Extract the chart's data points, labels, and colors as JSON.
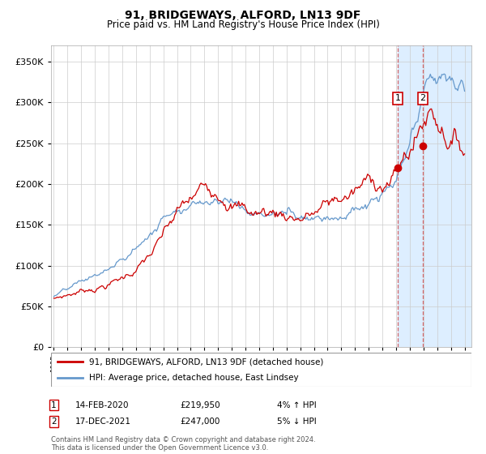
{
  "title": "91, BRIDGEWAYS, ALFORD, LN13 9DF",
  "subtitle": "Price paid vs. HM Land Registry's House Price Index (HPI)",
  "legend_line1": "91, BRIDGEWAYS, ALFORD, LN13 9DF (detached house)",
  "legend_line2": "HPI: Average price, detached house, East Lindsey",
  "annotation1_date": "14-FEB-2020",
  "annotation1_price": "£219,950",
  "annotation1_hpi": "4% ↑ HPI",
  "annotation2_date": "17-DEC-2021",
  "annotation2_price": "£247,000",
  "annotation2_hpi": "5% ↓ HPI",
  "footer": "Contains HM Land Registry data © Crown copyright and database right 2024.\nThis data is licensed under the Open Government Licence v3.0.",
  "red_color": "#cc0000",
  "blue_color": "#6699cc",
  "highlight_color": "#ddeeff",
  "marker1_x": 2020.12,
  "marker1_y": 219950,
  "marker2_x": 2021.96,
  "marker2_y": 247000,
  "vline1_x": 2020.12,
  "vline2_x": 2021.96,
  "highlight_start": 2020.12,
  "highlight_end": 2025.5,
  "ylim": [
    0,
    370000
  ],
  "xlim": [
    1994.8,
    2025.5
  ]
}
